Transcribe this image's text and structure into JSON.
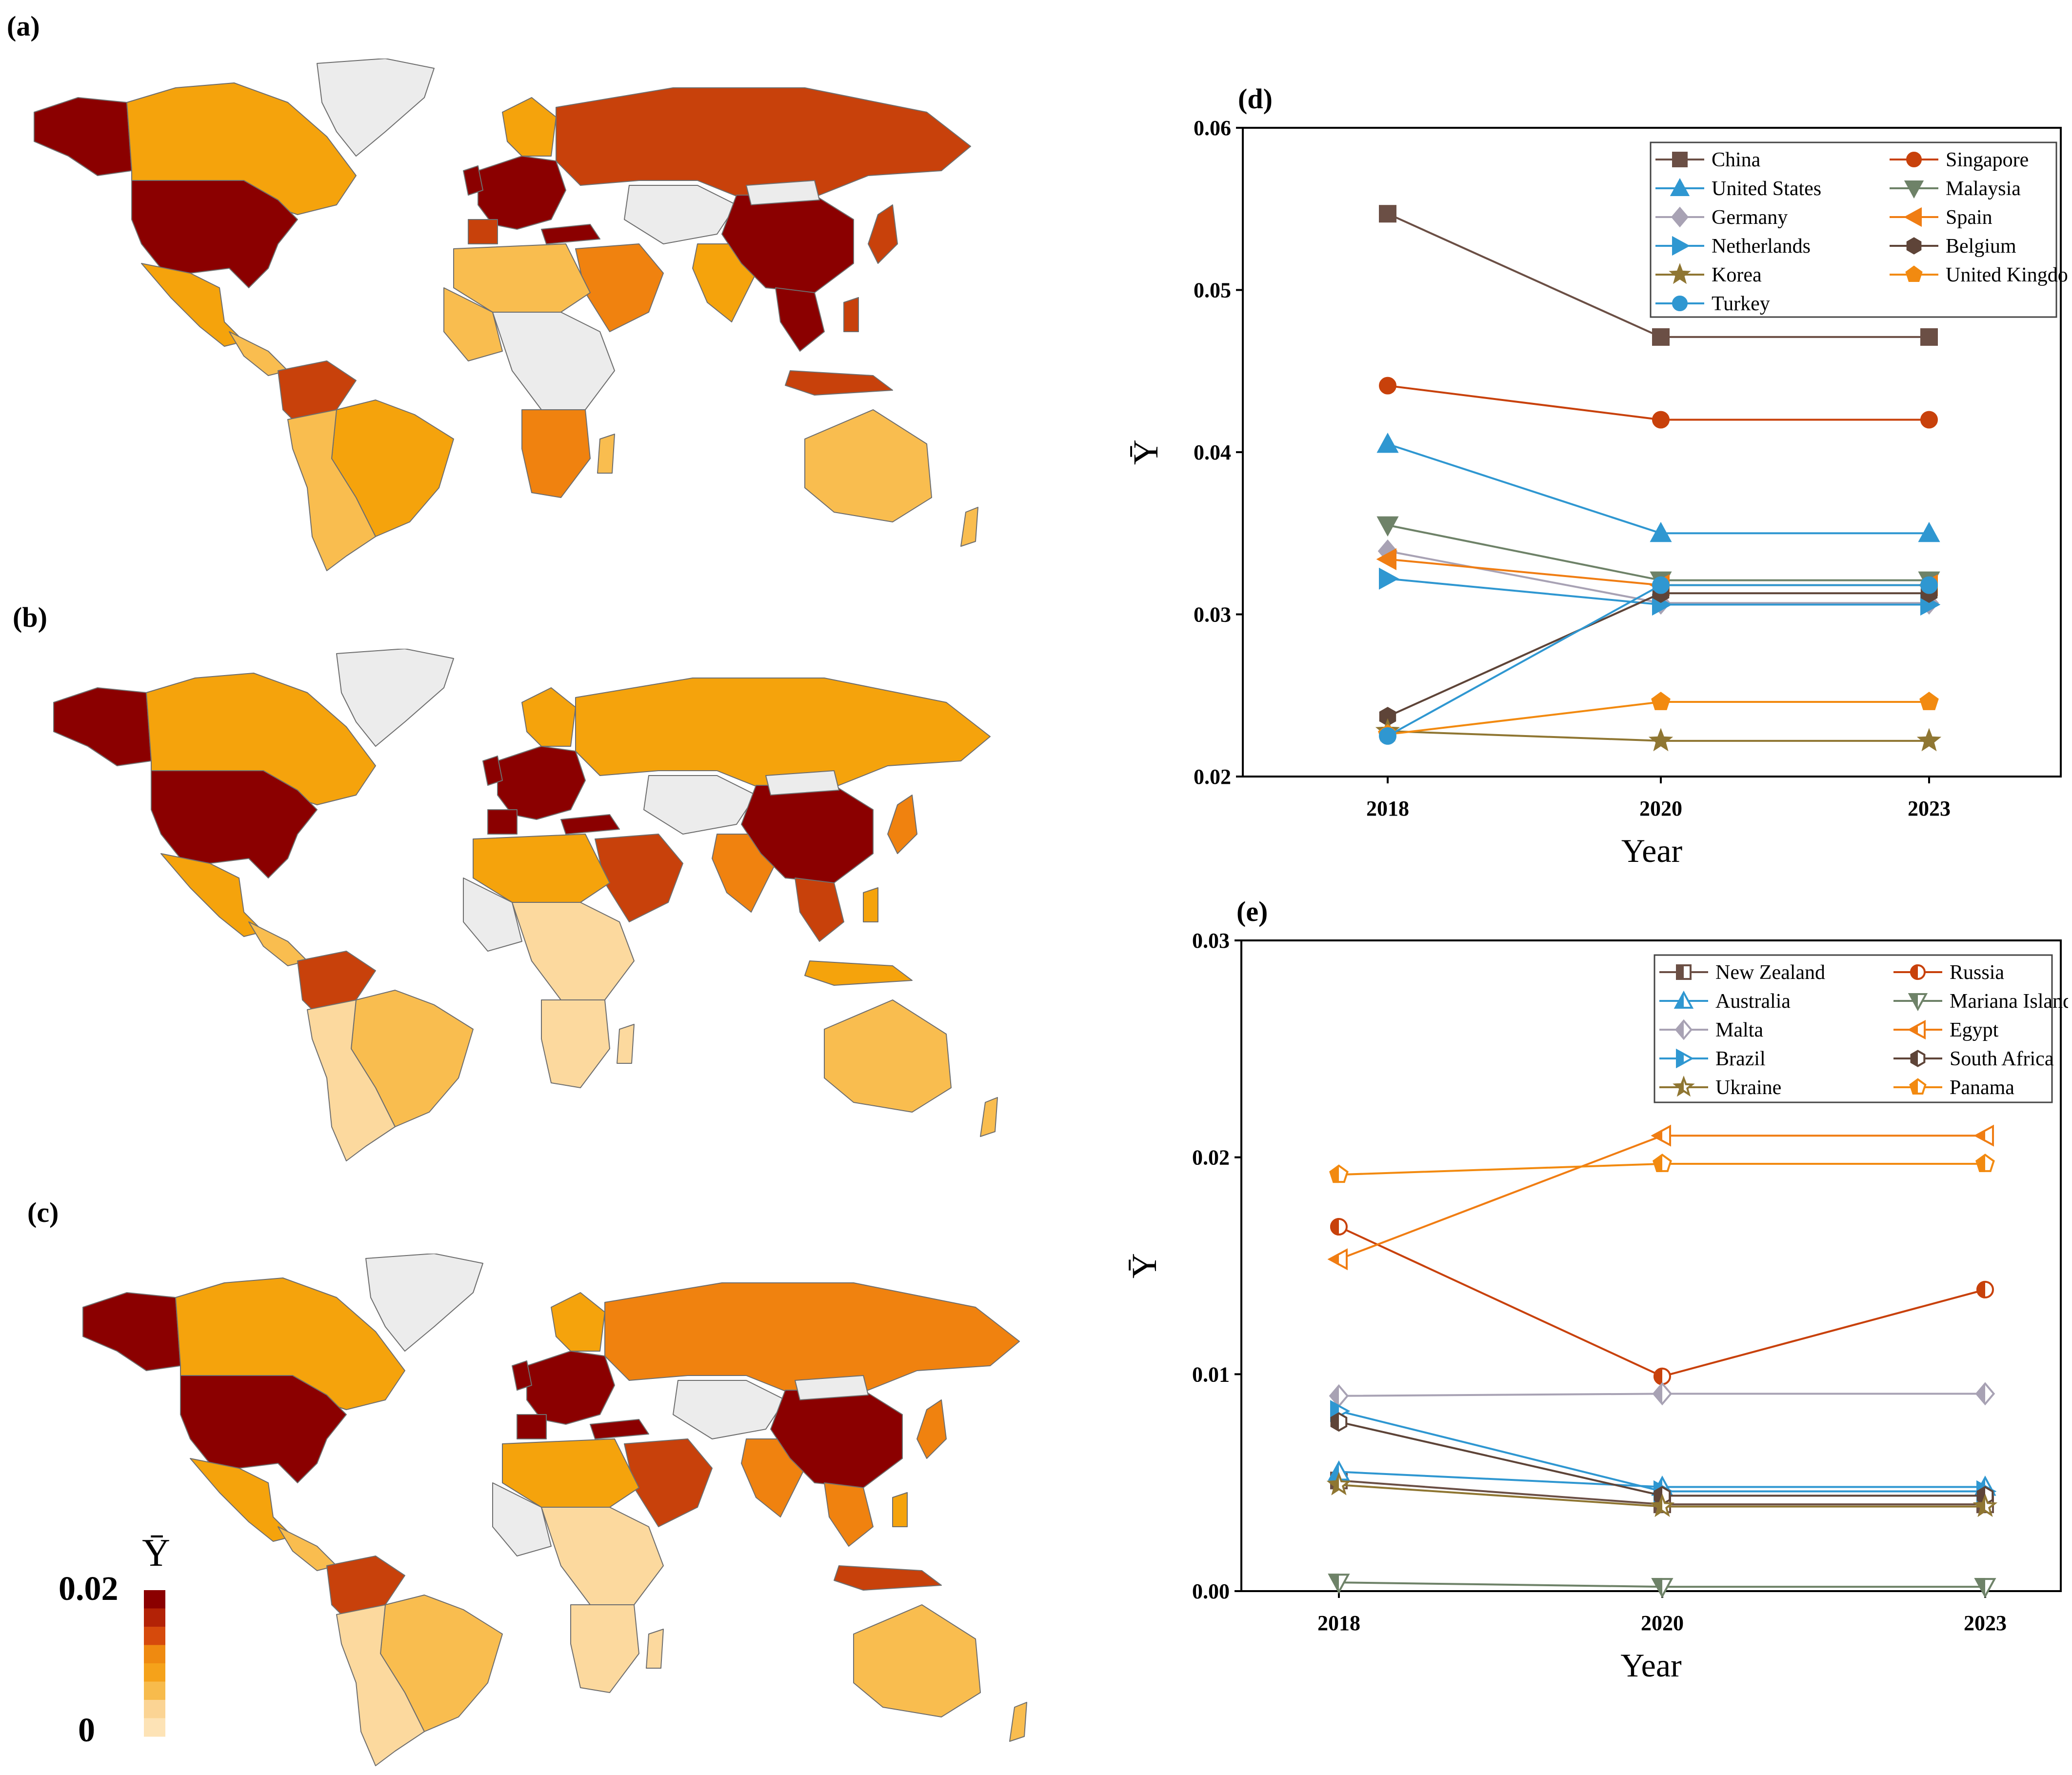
{
  "panels": {
    "a": "(a)",
    "b": "(b)",
    "c": "(c)"
  },
  "colorbar": {
    "symbol": "Ῡ",
    "max_label": "0.02",
    "min_label": "0",
    "colors": [
      "#8b0000",
      "#b32206",
      "#d64a0c",
      "#ef8a10",
      "#f5a21a",
      "#f7bb4c",
      "#fbd494",
      "#fde3b6"
    ]
  },
  "palette": {
    "darkred": "#8b0000",
    "red": "#c8410b",
    "orange": "#f0820f",
    "amber": "#f5a30c",
    "light": "#f9bd4f",
    "pale": "#fcd99e",
    "grey": "#ececec",
    "border": "#6e6e6e"
  },
  "chart_data": [
    {
      "panel": "(d)",
      "type": "line",
      "xlabel": "Year",
      "ylabel": "Ῡ",
      "x": [
        "2018",
        "2020",
        "2023"
      ],
      "ylim": [
        0.02,
        0.06
      ],
      "yticks": [
        "0.02",
        "0.03",
        "0.04",
        "0.05",
        "0.06"
      ],
      "legend_position": "top-right",
      "series": [
        {
          "name": "China",
          "values": [
            0.0547,
            0.0471,
            0.0471
          ],
          "color": "#6b4f45",
          "marker": "square"
        },
        {
          "name": "Singapore",
          "values": [
            0.0441,
            0.042,
            0.042
          ],
          "color": "#c8410b",
          "marker": "circle"
        },
        {
          "name": "United States",
          "values": [
            0.0405,
            0.035,
            0.035
          ],
          "color": "#2f97d1",
          "marker": "triangle-up"
        },
        {
          "name": "Malaysia",
          "values": [
            0.0355,
            0.0321,
            0.0321
          ],
          "color": "#6e8268",
          "marker": "triangle-down"
        },
        {
          "name": "Germany",
          "values": [
            0.0339,
            0.0307,
            0.0307
          ],
          "color": "#a8a2b4",
          "marker": "diamond"
        },
        {
          "name": "Spain",
          "values": [
            0.0334,
            0.0318,
            0.0318
          ],
          "color": "#f07d13",
          "marker": "triangle-left"
        },
        {
          "name": "Netherlands",
          "values": [
            0.0322,
            0.0306,
            0.0306
          ],
          "color": "#2f97d1",
          "marker": "triangle-right"
        },
        {
          "name": "Belgium",
          "values": [
            0.0237,
            0.0313,
            0.0313
          ],
          "color": "#5e4438",
          "marker": "hexagon"
        },
        {
          "name": "Korea",
          "values": [
            0.0228,
            0.0222,
            0.0222
          ],
          "color": "#8f7632",
          "marker": "star"
        },
        {
          "name": "United Kingdom",
          "values": [
            0.0226,
            0.0246,
            0.0246
          ],
          "color": "#f28a10",
          "marker": "pentagon"
        },
        {
          "name": "Turkey",
          "values": [
            0.0225,
            0.0318,
            0.0318
          ],
          "color": "#2f97d1",
          "marker": "sphere"
        }
      ]
    },
    {
      "panel": "(e)",
      "type": "line",
      "xlabel": "Year",
      "ylabel": "Ῡ",
      "x": [
        "2018",
        "2020",
        "2023"
      ],
      "ylim": [
        0.0,
        0.03
      ],
      "yticks": [
        "0.00",
        "0.01",
        "0.02",
        "0.03"
      ],
      "legend_position": "top-right",
      "series": [
        {
          "name": "New Zealand",
          "values": [
            0.0051,
            0.004,
            0.004
          ],
          "color": "#6b4f45",
          "marker": "square"
        },
        {
          "name": "Russia",
          "values": [
            0.0168,
            0.0099,
            0.0139
          ],
          "color": "#c8410b",
          "marker": "circle"
        },
        {
          "name": "Australia",
          "values": [
            0.0055,
            0.0048,
            0.0048
          ],
          "color": "#2f97d1",
          "marker": "triangle-up"
        },
        {
          "name": "Mariana Islands",
          "values": [
            0.0004,
            0.0002,
            0.0002
          ],
          "color": "#6e8268",
          "marker": "triangle-down"
        },
        {
          "name": "Malta",
          "values": [
            0.009,
            0.0091,
            0.0091
          ],
          "color": "#a8a2b4",
          "marker": "diamond"
        },
        {
          "name": "Egypt",
          "values": [
            0.0153,
            0.021,
            0.021
          ],
          "color": "#f07d13",
          "marker": "triangle-left"
        },
        {
          "name": "Brazil",
          "values": [
            0.0083,
            0.0046,
            0.0046
          ],
          "color": "#2f97d1",
          "marker": "triangle-right"
        },
        {
          "name": "South Africa",
          "values": [
            0.0078,
            0.0044,
            0.0044
          ],
          "color": "#5e4438",
          "marker": "hexagon"
        },
        {
          "name": "Ukraine",
          "values": [
            0.0049,
            0.0039,
            0.0039
          ],
          "color": "#8f7632",
          "marker": "star"
        },
        {
          "name": "Panama",
          "values": [
            0.0192,
            0.0197,
            0.0197
          ],
          "color": "#f28a10",
          "marker": "pentagon"
        }
      ]
    }
  ]
}
